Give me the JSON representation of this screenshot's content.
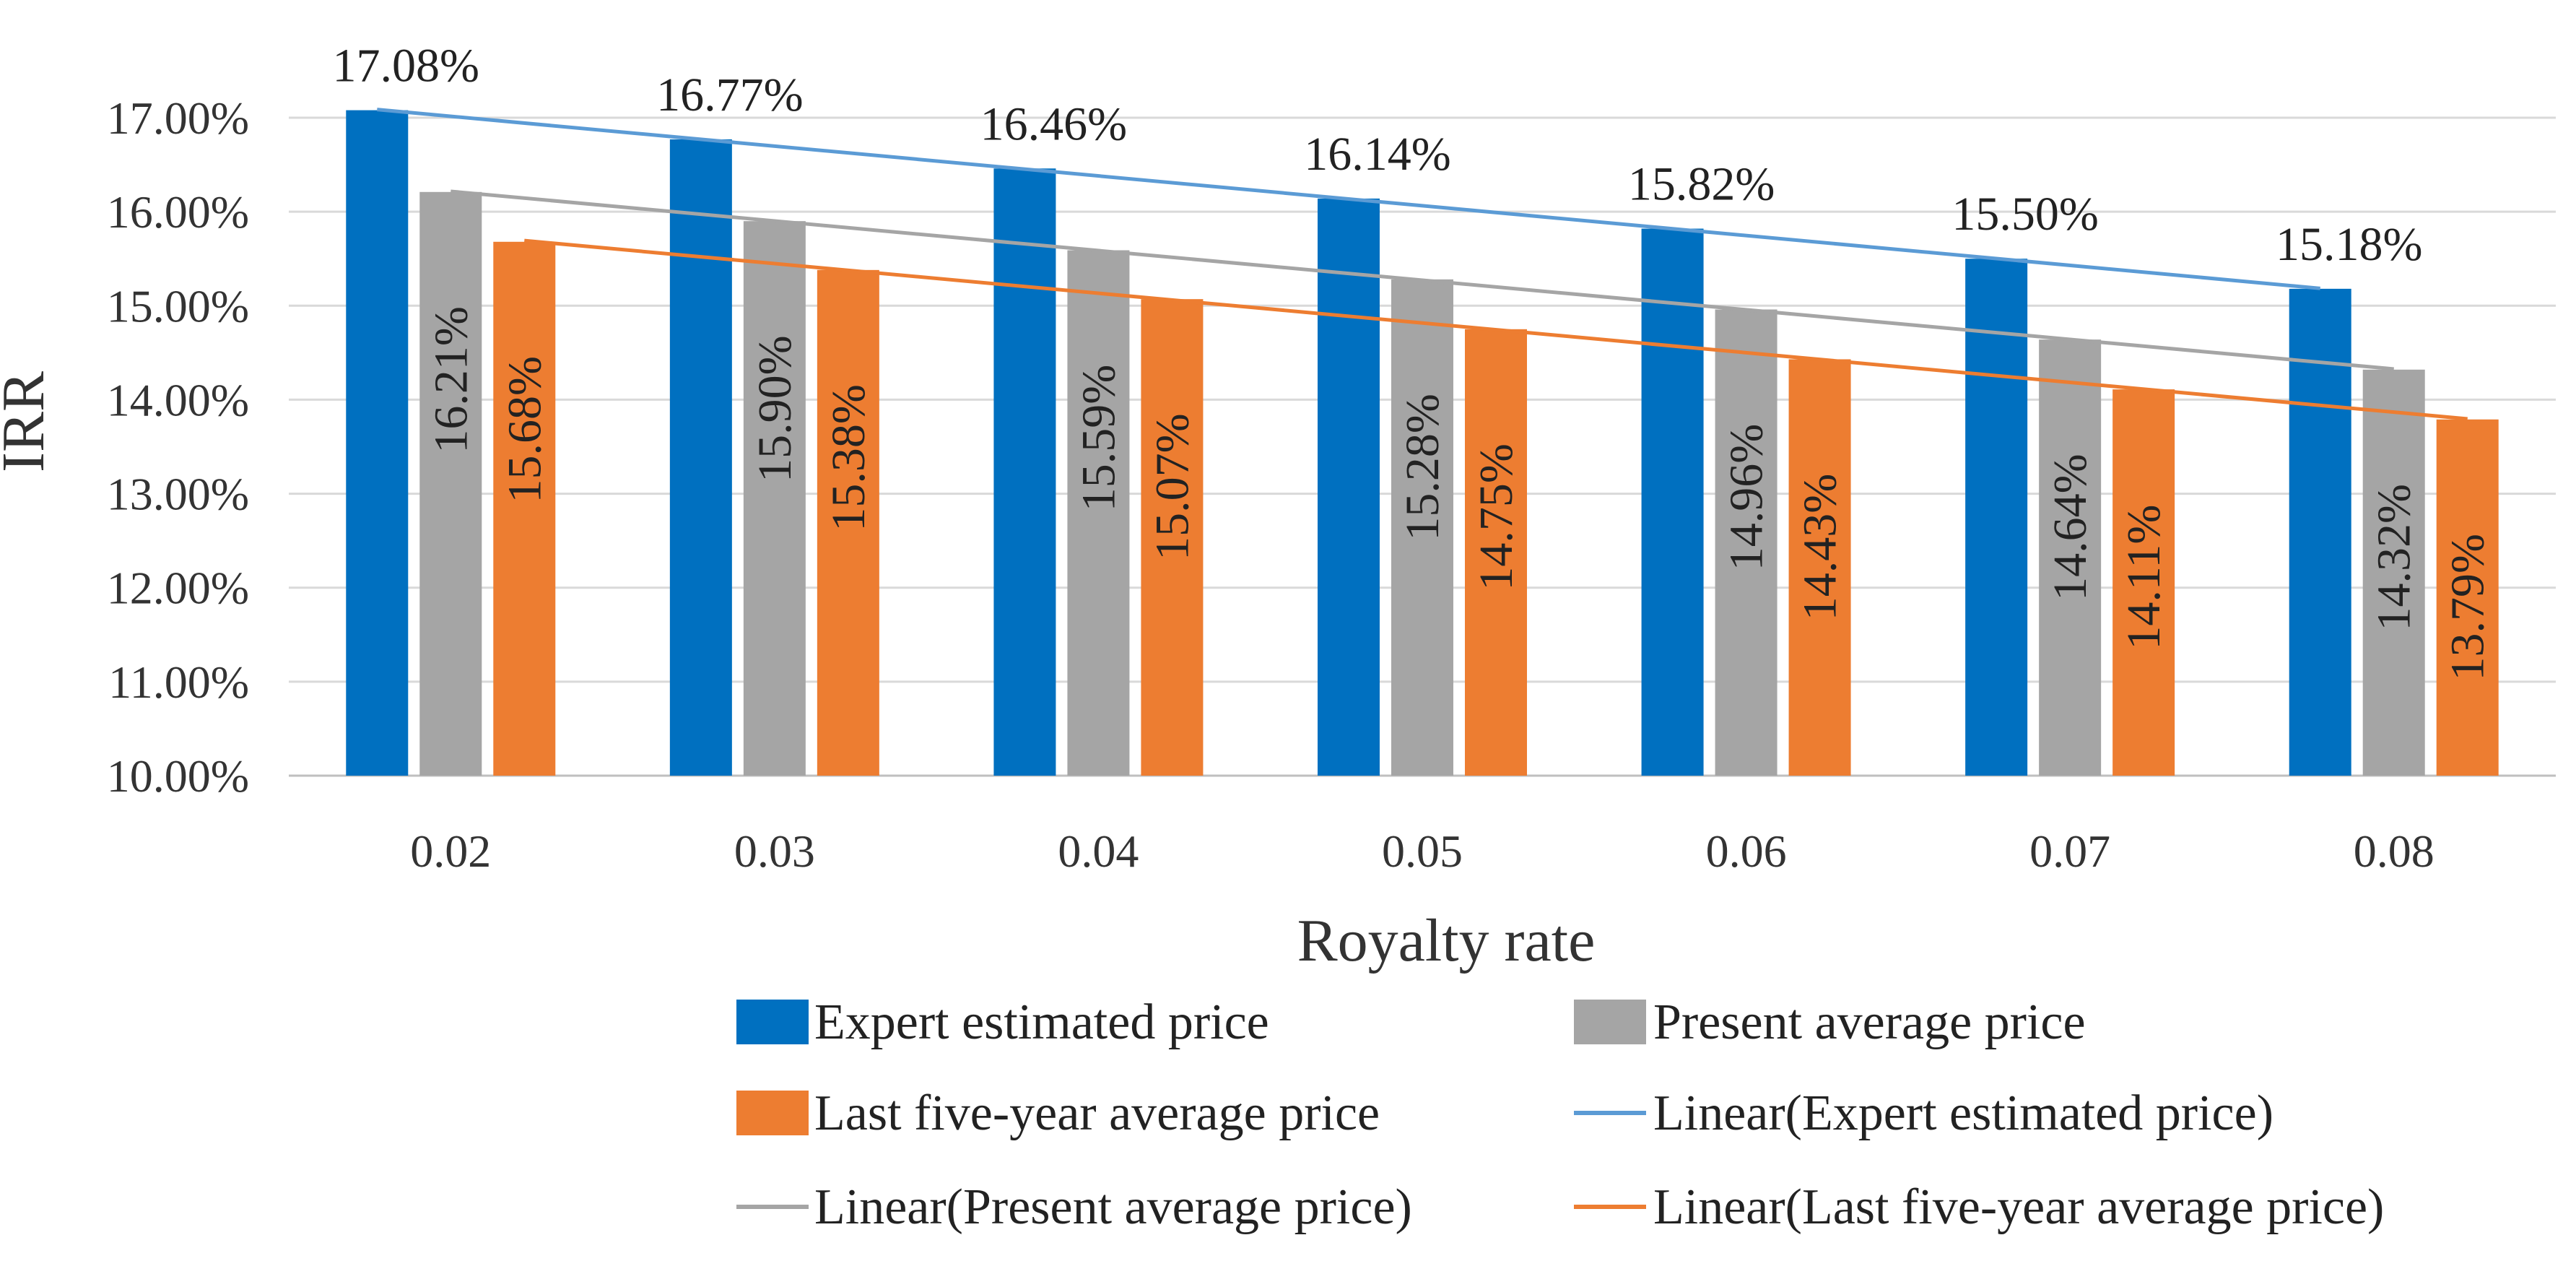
{
  "chart_data": {
    "type": "bar",
    "title": "",
    "xlabel": "Royalty rate",
    "ylabel": "IRR",
    "ylim": [
      0.1,
      0.17
    ],
    "y_ticks": [
      "10.00%",
      "11.00%",
      "12.00%",
      "13.00%",
      "14.00%",
      "15.00%",
      "16.00%",
      "17.00%"
    ],
    "grid": true,
    "categories": [
      "0.02",
      "0.03",
      "0.04",
      "0.05",
      "0.06",
      "0.07",
      "0.08"
    ],
    "series": [
      {
        "name": "Expert estimated price",
        "color": "#0070C0",
        "values": [
          0.1708,
          0.1677,
          0.1646,
          0.1614,
          0.1582,
          0.155,
          0.1518
        ],
        "labels": [
          "17.08%",
          "16.77%",
          "16.46%",
          "16.14%",
          "15.82%",
          "15.50%",
          "15.18%"
        ]
      },
      {
        "name": "Present average price",
        "color": "#A5A5A5",
        "values": [
          0.1621,
          0.159,
          0.1559,
          0.1528,
          0.1496,
          0.1464,
          0.1432
        ],
        "labels": [
          "16.21%",
          "15.90%",
          "15.59%",
          "15.28%",
          "14.96%",
          "14.64%",
          "14.32%"
        ]
      },
      {
        "name": "Last five-year average price",
        "color": "#ED7D31",
        "values": [
          0.1568,
          0.1538,
          0.1507,
          0.1475,
          0.1443,
          0.1411,
          0.1379
        ],
        "labels": [
          "15.68%",
          "15.38%",
          "15.07%",
          "14.75%",
          "14.43%",
          "14.11%",
          "13.79%"
        ]
      }
    ],
    "trendlines": [
      {
        "name": "Linear(Expert estimated price)",
        "series": 0,
        "color": "#5B9BD5"
      },
      {
        "name": "Linear(Present average price)",
        "series": 1,
        "color": "#A5A5A5"
      },
      {
        "name": "Linear(Last five-year average price)",
        "series": 2,
        "color": "#ED7D31"
      }
    ],
    "legend_position": "bottom"
  }
}
